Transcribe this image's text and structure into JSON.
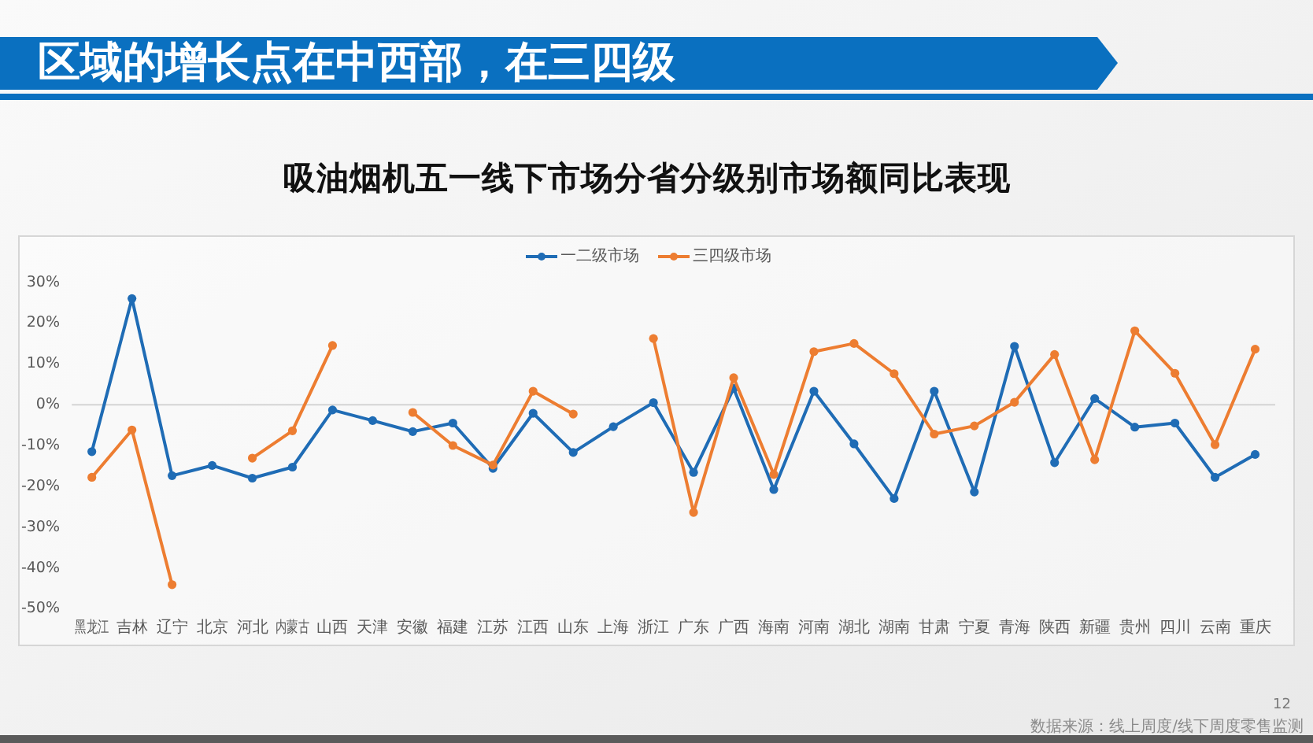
{
  "chart_data": {
    "type": "line",
    "title": "区域的增长点在中西部，在三四级",
    "subtitle": "吸油烟机五一线下市场分省分级别市场额同比表现",
    "categories": [
      "黑龙江",
      "吉林",
      "辽宁",
      "北京",
      "河北",
      "内蒙古",
      "山西",
      "天津",
      "安徽",
      "福建",
      "江苏",
      "江西",
      "山东",
      "上海",
      "浙江",
      "广东",
      "广西",
      "海南",
      "河南",
      "湖北",
      "湖南",
      "甘肃",
      "宁夏",
      "青海",
      "陕西",
      "新疆",
      "贵州",
      "四川",
      "云南",
      "重庆"
    ],
    "series": [
      {
        "name": "一二级市场",
        "color": "#1f6cb5",
        "values": [
          -11.5,
          26,
          -17.4,
          -14.9,
          -18,
          -15.3,
          -1.3,
          -3.9,
          -6.6,
          -4.5,
          -15.6,
          -2.1,
          -11.7,
          -5.4,
          0.5,
          -16.6,
          4,
          -20.8,
          3.3,
          -9.6,
          -23,
          3.3,
          -21.4,
          14.3,
          -14.2,
          1.5,
          -5.5,
          -4.5,
          -17.8,
          -12.2
        ]
      },
      {
        "name": "三四级市场",
        "color": "#ed7d31",
        "values": [
          -17.8,
          -6.2,
          -44.1,
          null,
          -13.1,
          -6.4,
          14.5,
          null,
          -1.9,
          -10,
          -14.8,
          3.3,
          -2.3,
          null,
          16.2,
          -26.4,
          6.6,
          -17.1,
          13,
          15,
          7.6,
          -7.2,
          -5.2,
          0.6,
          12.3,
          -13.5,
          18.1,
          7.7,
          -9.8,
          13.6
        ]
      }
    ],
    "ylim": [
      -50,
      30
    ],
    "yticks": [
      {
        "value": 30,
        "label": "30%"
      },
      {
        "value": 20,
        "label": "20%"
      },
      {
        "value": 10,
        "label": "10%"
      },
      {
        "value": 0,
        "label": "0%"
      },
      {
        "value": -10,
        "label": "-10%"
      },
      {
        "value": -20,
        "label": "-20%"
      },
      {
        "value": -30,
        "label": "-30%"
      },
      {
        "value": -40,
        "label": "-40%"
      },
      {
        "value": -50,
        "label": "-50%"
      }
    ],
    "ref_lines": [
      {
        "axis": "y",
        "value": 0,
        "color": "#d4d4d4"
      }
    ],
    "grid": false,
    "legend": "top",
    "marker": "circle",
    "annotations": [
      "数据来源：线上周度/线下周度零售监测",
      "12"
    ]
  }
}
